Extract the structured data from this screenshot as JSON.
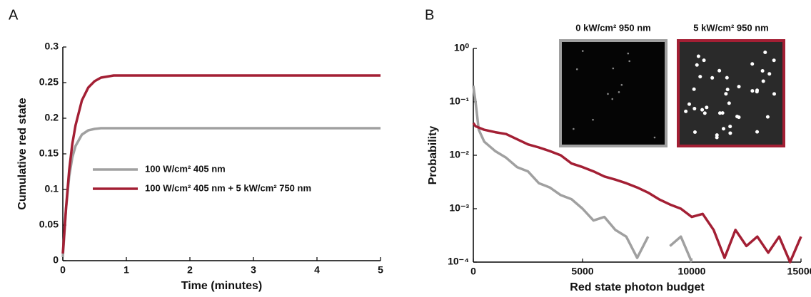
{
  "chart_data": [
    {
      "type": "line",
      "panel_label": "A",
      "y_label": "Cumulative red state",
      "x_label": "Time (minutes)",
      "x": [
        0,
        0.05,
        0.1,
        0.15,
        0.2,
        0.3,
        0.4,
        0.5,
        0.6,
        0.8,
        1,
        2,
        3,
        4,
        5
      ],
      "series": [
        {
          "name": "100 W/cm² 405 nm",
          "color": "#a0a0a0",
          "values": [
            0.005,
            0.073,
            0.118,
            0.145,
            0.161,
            0.177,
            0.183,
            0.185,
            0.186,
            0.186,
            0.186,
            0.186,
            0.186,
            0.186,
            0.186
          ]
        },
        {
          "name": "100 W/cm² 405 nm + 5 kW/cm² 750 nm",
          "color": "#a31f34",
          "values": [
            0.01,
            0.074,
            0.127,
            0.164,
            0.19,
            0.225,
            0.243,
            0.252,
            0.257,
            0.26,
            0.26,
            0.26,
            0.26,
            0.26,
            0.26
          ]
        }
      ],
      "xlim": [
        0,
        5
      ],
      "xticks": [
        0,
        1,
        2,
        3,
        4,
        5
      ],
      "ylim": [
        0,
        0.3
      ],
      "yticks": [
        0,
        0.05,
        0.1,
        0.15,
        0.2,
        0.25,
        0.3
      ],
      "legend": "center-left"
    },
    {
      "type": "line",
      "panel_label": "B",
      "y_label": "Probability",
      "x_label": "Red state photon budget",
      "log_y": true,
      "x": [
        0,
        100,
        250,
        500,
        1000,
        1500,
        2000,
        2500,
        3000,
        3500,
        4000,
        4500,
        5000,
        5500,
        6000,
        6500,
        7000,
        7500,
        8000,
        8500,
        9000,
        9500,
        10000,
        10500,
        11000,
        11500,
        12000,
        12500,
        13000,
        13500,
        14000,
        14500,
        15000
      ],
      "series": [
        {
          "color": "#a0a0a0",
          "values": [
            0.2,
            0.1,
            0.03,
            0.018,
            0.012,
            0.009,
            0.006,
            0.005,
            0.003,
            0.0025,
            0.0018,
            0.0015,
            0.001,
            0.0006,
            0.0007,
            0.0004,
            0.0003,
            0.00012,
            0.0003,
            null,
            0.0002,
            0.0003,
            0.0001,
            null,
            null,
            null,
            null,
            null,
            null,
            null,
            null,
            null,
            null
          ]
        },
        {
          "color": "#a31f34",
          "values": [
            0.04,
            0.035,
            0.033,
            0.03,
            0.027,
            0.025,
            0.02,
            0.016,
            0.014,
            0.012,
            0.01,
            0.007,
            0.006,
            0.005,
            0.004,
            0.0035,
            0.003,
            0.0025,
            0.002,
            0.0015,
            0.0012,
            0.001,
            0.0007,
            0.0008,
            0.0004,
            0.00012,
            0.0004,
            0.0002,
            0.0003,
            0.00015,
            0.0003,
            0.0001,
            0.0003
          ]
        }
      ],
      "xlim": [
        0,
        15000
      ],
      "xticks": [
        0,
        5000,
        10000,
        15000
      ],
      "ylim": [
        0.0001,
        1
      ],
      "yticks": [
        {
          "value": 0.0001,
          "label": "10⁻⁴"
        },
        {
          "value": 0.001,
          "label": "10⁻³"
        },
        {
          "value": 0.01,
          "label": "10⁻²"
        },
        {
          "value": 0.1,
          "label": "10⁻¹"
        },
        {
          "value": 1,
          "label": "10⁰"
        }
      ],
      "insets": [
        {
          "label": "0 kW/cm² 950 nm",
          "color": "#a0a0a0"
        },
        {
          "label": "5 kW/cm² 950 nm",
          "color": "#a31f34"
        }
      ]
    }
  ]
}
